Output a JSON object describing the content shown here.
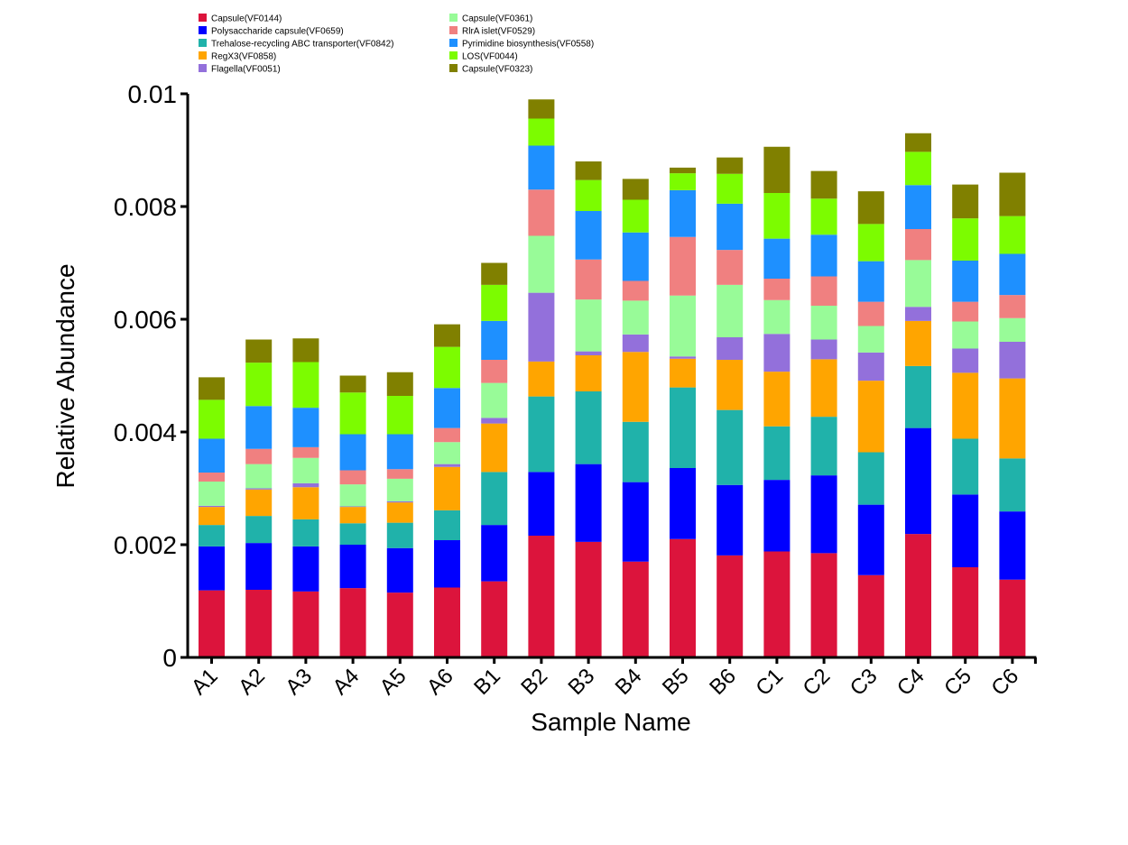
{
  "chart_data": {
    "type": "bar",
    "stacked": true,
    "title": "",
    "xlabel": "Sample Name",
    "ylabel": "Relative Abundance",
    "ylim": [
      0,
      0.01
    ],
    "yticks": [
      0,
      0.002,
      0.004,
      0.006,
      0.008,
      0.01
    ],
    "ytick_labels": [
      "0",
      "0.002",
      "0.004",
      "0.006",
      "0.008",
      "0.01"
    ],
    "grid": false,
    "legend_position": "top",
    "categories": [
      "A1",
      "A2",
      "A3",
      "A4",
      "A5",
      "A6",
      "B1",
      "B2",
      "B3",
      "B4",
      "B5",
      "B6",
      "C1",
      "C2",
      "C3",
      "C4",
      "C5",
      "C6"
    ],
    "series": [
      {
        "name": "Capsule(VF0144)",
        "color": "#DC143C",
        "values": [
          0.00119,
          0.0012,
          0.00117,
          0.00123,
          0.00115,
          0.00124,
          0.00135,
          0.00216,
          0.00205,
          0.0017,
          0.0021,
          0.00181,
          0.00188,
          0.00185,
          0.00146,
          0.00219,
          0.0016,
          0.00138
        ]
      },
      {
        "name": "Polysaccharide capsule(VF0659)",
        "color": "#0000FF",
        "values": [
          0.00078,
          0.00083,
          0.0008,
          0.00077,
          0.00079,
          0.00084,
          0.001,
          0.00113,
          0.00138,
          0.00141,
          0.00126,
          0.00125,
          0.00127,
          0.00138,
          0.00125,
          0.00188,
          0.00129,
          0.00121
        ]
      },
      {
        "name": "Trehalose-recycling ABC transporter(VF0842)",
        "color": "#20B2AA",
        "values": [
          0.00038,
          0.00048,
          0.00048,
          0.00038,
          0.00045,
          0.00053,
          0.00094,
          0.00134,
          0.00129,
          0.00107,
          0.00143,
          0.00133,
          0.00095,
          0.00104,
          0.00093,
          0.0011,
          0.00099,
          0.00094
        ]
      },
      {
        "name": "RegX3(VF0858)",
        "color": "#FFA500",
        "values": [
          0.00032,
          0.00047,
          0.00057,
          0.00029,
          0.00036,
          0.00077,
          0.00086,
          0.00062,
          0.00064,
          0.00124,
          0.00051,
          0.00089,
          0.00097,
          0.00102,
          0.00127,
          0.0008,
          0.00117,
          0.00142
        ]
      },
      {
        "name": "Flagella(VF0051)",
        "color": "#9370DB",
        "values": [
          2e-05,
          2e-05,
          7e-05,
          1e-05,
          2e-05,
          5e-05,
          0.0001,
          0.00122,
          7e-05,
          0.00031,
          4e-05,
          0.0004,
          0.00067,
          0.00035,
          0.0005,
          0.00025,
          0.00043,
          0.00065
        ]
      },
      {
        "name": "Capsule(VF0361)",
        "color": "#98FB98",
        "values": [
          0.00043,
          0.00043,
          0.00045,
          0.00039,
          0.0004,
          0.00039,
          0.00062,
          0.00101,
          0.00092,
          0.0006,
          0.00108,
          0.00093,
          0.0006,
          0.0006,
          0.00047,
          0.00083,
          0.00048,
          0.00042
        ]
      },
      {
        "name": "RlrA islet(VF0529)",
        "color": "#F08080",
        "values": [
          0.00016,
          0.00027,
          0.00019,
          0.00025,
          0.00017,
          0.00025,
          0.00041,
          0.00082,
          0.00071,
          0.00035,
          0.00104,
          0.00062,
          0.00038,
          0.00052,
          0.00043,
          0.00055,
          0.00035,
          0.00041
        ]
      },
      {
        "name": "Pyrimidine biosynthesis(VF0558)",
        "color": "#1E90FF",
        "values": [
          0.0006,
          0.00076,
          0.0007,
          0.00064,
          0.00062,
          0.00071,
          0.00069,
          0.00078,
          0.00086,
          0.00086,
          0.00083,
          0.00082,
          0.00071,
          0.00074,
          0.00072,
          0.00078,
          0.00073,
          0.00073
        ]
      },
      {
        "name": "LOS(VF0044)",
        "color": "#7CFC00",
        "values": [
          0.00069,
          0.00077,
          0.00081,
          0.00074,
          0.00068,
          0.00073,
          0.00064,
          0.00048,
          0.00055,
          0.00058,
          0.0003,
          0.00053,
          0.00081,
          0.00064,
          0.00066,
          0.00059,
          0.00075,
          0.00067
        ]
      },
      {
        "name": "Capsule(VF0323)",
        "color": "#808000",
        "values": [
          0.0004,
          0.00041,
          0.00042,
          0.0003,
          0.00042,
          0.0004,
          0.00039,
          0.00034,
          0.00033,
          0.00037,
          0.0001,
          0.00029,
          0.00082,
          0.00049,
          0.00058,
          0.00033,
          0.0006,
          0.00077
        ]
      }
    ]
  }
}
